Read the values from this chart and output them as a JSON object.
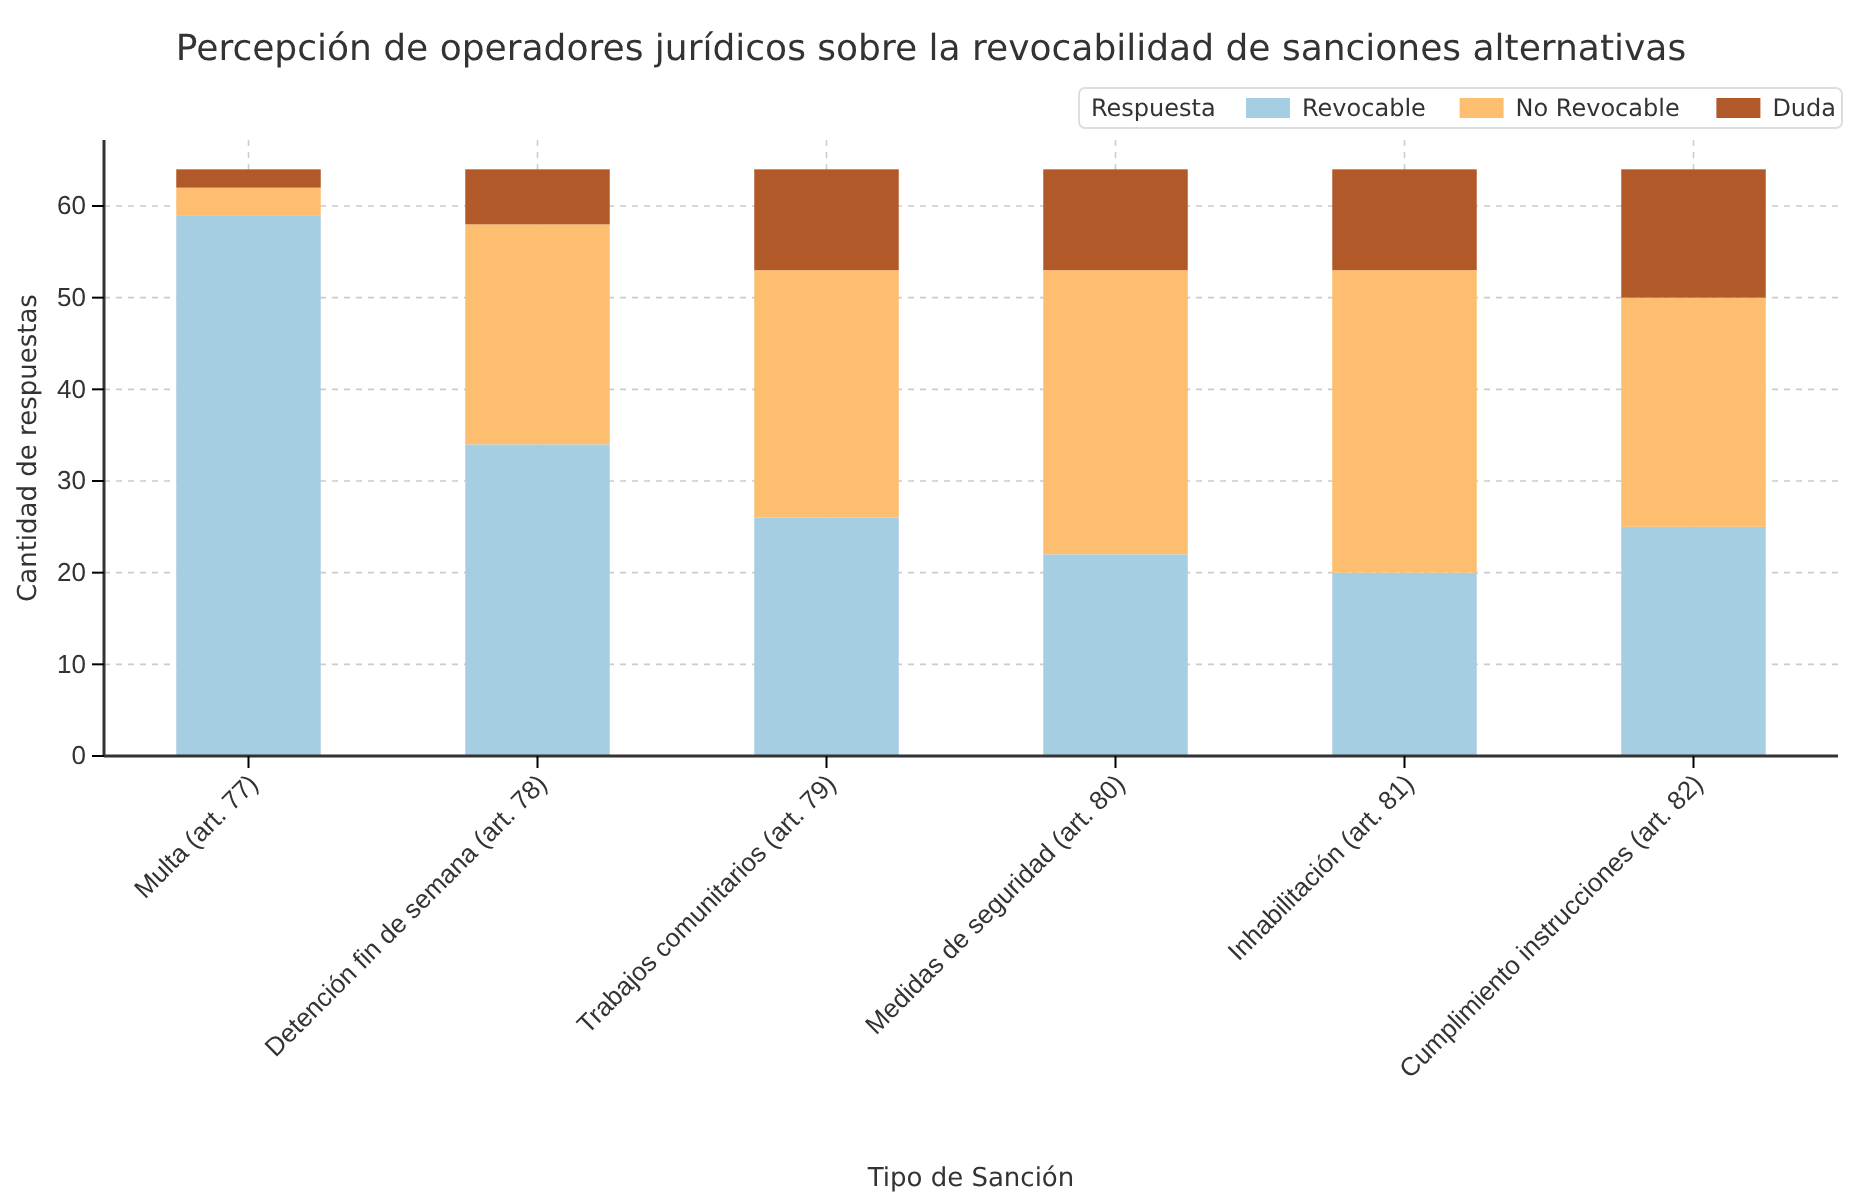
{
  "chart_data": {
    "type": "bar",
    "title": "Percepción de operadores jurídicos sobre la revocabilidad de sanciones alternativas",
    "xlabel": "Tipo de Sanción",
    "ylabel": "Cantidad de respuestas",
    "legend_title": "Respuesta",
    "categories": [
      "Multa (art. 77)",
      "Detención fin de semana (art. 78)",
      "Trabajos comunitarios (art. 79)",
      "Medidas de seguridad (art. 80)",
      "Inhabilitación (art. 81)",
      "Cumplimiento instrucciones (art. 82)"
    ],
    "series": [
      {
        "name": "Revocable",
        "color": "#a6cee3",
        "values": [
          59,
          34,
          26,
          22,
          20,
          25
        ]
      },
      {
        "name": "No Revocable",
        "color": "#fdbf6f",
        "values": [
          3,
          24,
          27,
          31,
          33,
          25
        ]
      },
      {
        "name": "Duda",
        "color": "#b15928",
        "values": [
          2,
          6,
          11,
          11,
          11,
          14
        ]
      }
    ],
    "stacked": true,
    "ylim": [
      0,
      67.2
    ],
    "yticks": [
      0,
      10,
      20,
      30,
      40,
      50,
      60
    ],
    "grid": true,
    "legend": "top right"
  }
}
